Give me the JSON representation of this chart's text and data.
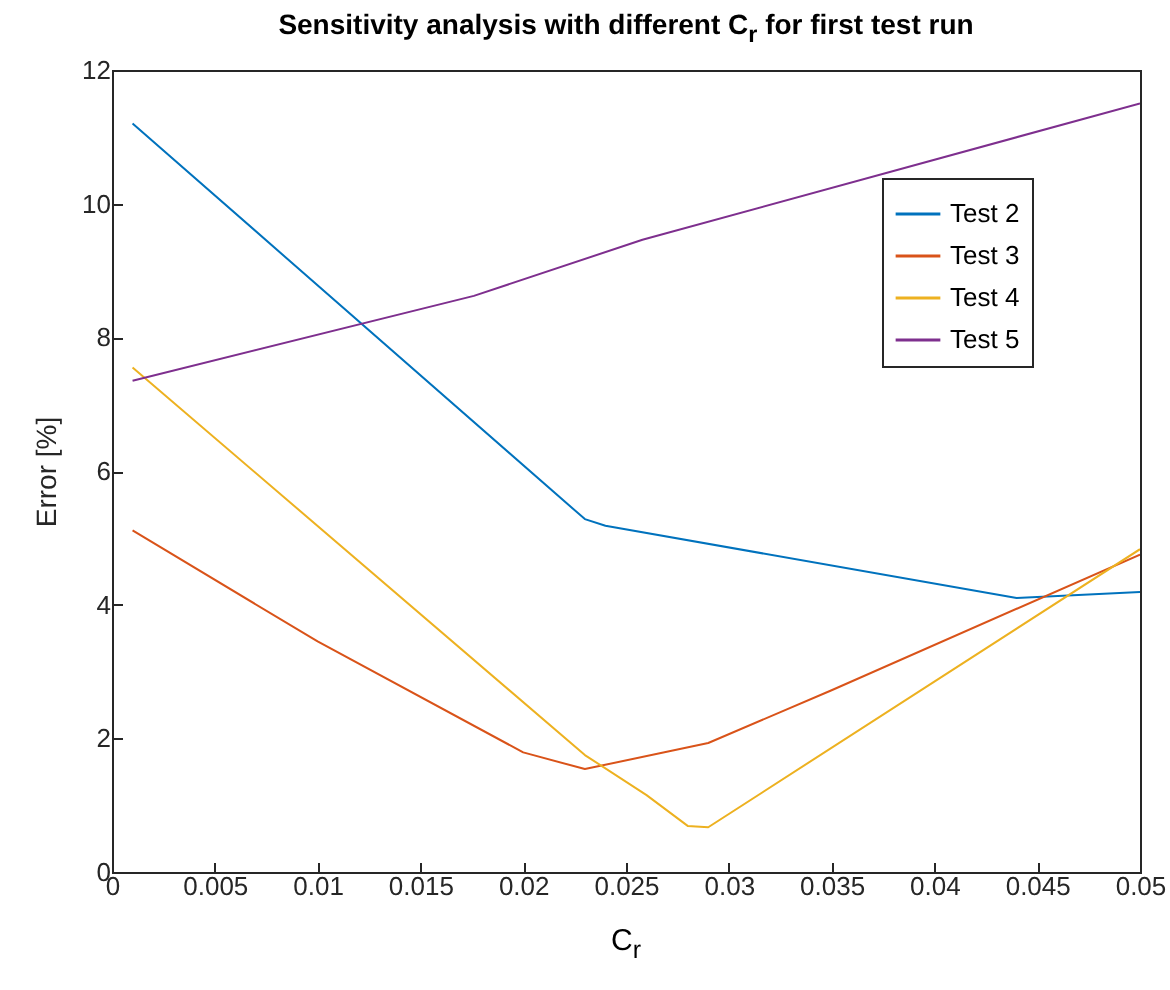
{
  "chart_data": {
    "type": "line",
    "title": "Sensitivity analysis with different C$_{r}$ for first test run",
    "xlabel": "C$_{r}$",
    "ylabel": "Error [%]",
    "xlim": [
      0,
      0.05
    ],
    "xticks": [
      0,
      0.005,
      0.01,
      0.015,
      0.02,
      0.025,
      0.03,
      0.035,
      0.04,
      0.045,
      0.05
    ],
    "ylim": [
      0,
      12
    ],
    "yticks": [
      0,
      2,
      4,
      6,
      8,
      10,
      12
    ],
    "grid": false,
    "legend": "top right",
    "series": [
      {
        "name": "Test 2",
        "color": "#0072bd",
        "x": [
          0.001,
          0.023,
          0.024,
          0.044,
          0.05
        ],
        "values": [
          11.2,
          5.28,
          5.18,
          4.1,
          4.19
        ]
      },
      {
        "name": "Test 3",
        "color": "#d95319",
        "x": [
          0.001,
          0.01,
          0.02,
          0.023,
          0.029,
          0.035,
          0.05
        ],
        "values": [
          5.11,
          3.45,
          1.79,
          1.54,
          1.93,
          2.72,
          4.75
        ]
      },
      {
        "name": "Test 4",
        "color": "#edb120",
        "x": [
          0.001,
          0.023,
          0.026,
          0.028,
          0.029,
          0.05
        ],
        "values": [
          7.55,
          1.75,
          1.15,
          0.69,
          0.67,
          4.83
        ]
      },
      {
        "name": "Test 5",
        "color": "#7e2f8e",
        "x": [
          0.001,
          0.0176,
          0.0258,
          0.05
        ],
        "values": [
          7.35,
          8.62,
          9.46,
          11.5
        ]
      }
    ]
  }
}
